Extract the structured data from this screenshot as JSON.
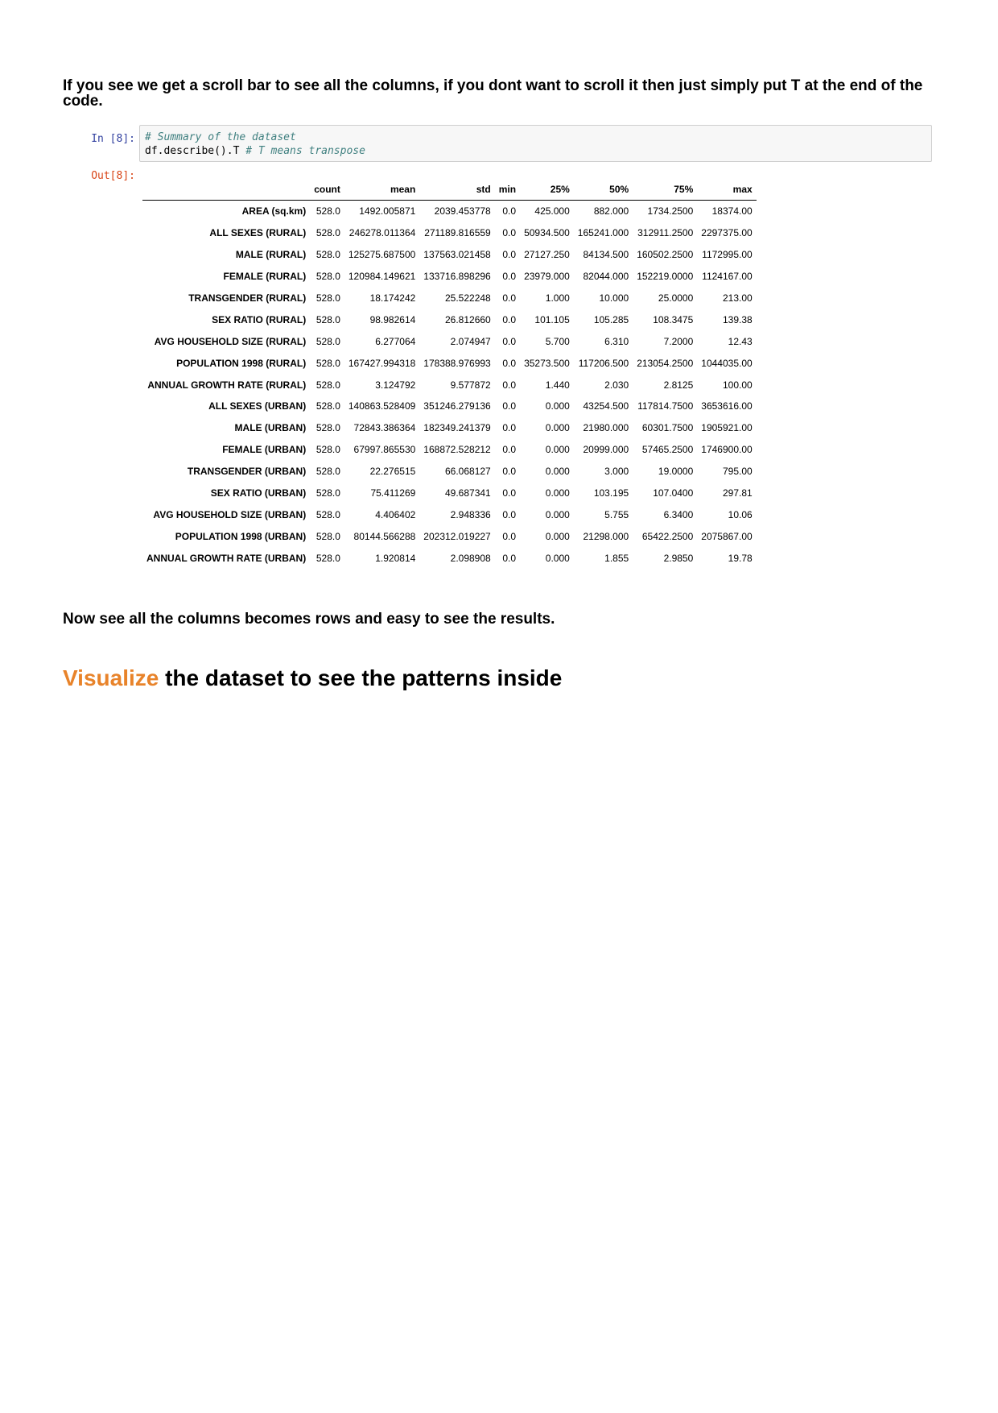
{
  "intro_text": "If you see we get a scroll bar to see all the columns, if you dont want to scroll it then just simply put T at the end of the code.",
  "cell": {
    "in_prompt": "In [8]:",
    "out_prompt": "Out[8]:",
    "code_comment": "# Summary of the dataset",
    "code_line": "df.describe().T",
    "code_inline_comment": "# T means transpose"
  },
  "table": {
    "columns": [
      "",
      "count",
      "mean",
      "std",
      "min",
      "25%",
      "50%",
      "75%",
      "max"
    ],
    "rows": [
      [
        "AREA (sq.km)",
        "528.0",
        "1492.005871",
        "2039.453778",
        "0.0",
        "425.000",
        "882.000",
        "1734.2500",
        "18374.00"
      ],
      [
        "ALL SEXES (RURAL)",
        "528.0",
        "246278.011364",
        "271189.816559",
        "0.0",
        "50934.500",
        "165241.000",
        "312911.2500",
        "2297375.00"
      ],
      [
        "MALE (RURAL)",
        "528.0",
        "125275.687500",
        "137563.021458",
        "0.0",
        "27127.250",
        "84134.500",
        "160502.2500",
        "1172995.00"
      ],
      [
        "FEMALE (RURAL)",
        "528.0",
        "120984.149621",
        "133716.898296",
        "0.0",
        "23979.000",
        "82044.000",
        "152219.0000",
        "1124167.00"
      ],
      [
        "TRANSGENDER (RURAL)",
        "528.0",
        "18.174242",
        "25.522248",
        "0.0",
        "1.000",
        "10.000",
        "25.0000",
        "213.00"
      ],
      [
        "SEX RATIO (RURAL)",
        "528.0",
        "98.982614",
        "26.812660",
        "0.0",
        "101.105",
        "105.285",
        "108.3475",
        "139.38"
      ],
      [
        "AVG HOUSEHOLD SIZE (RURAL)",
        "528.0",
        "6.277064",
        "2.074947",
        "0.0",
        "5.700",
        "6.310",
        "7.2000",
        "12.43"
      ],
      [
        "POPULATION 1998 (RURAL)",
        "528.0",
        "167427.994318",
        "178388.976993",
        "0.0",
        "35273.500",
        "117206.500",
        "213054.2500",
        "1044035.00"
      ],
      [
        "ANNUAL GROWTH RATE (RURAL)",
        "528.0",
        "3.124792",
        "9.577872",
        "0.0",
        "1.440",
        "2.030",
        "2.8125",
        "100.00"
      ],
      [
        "ALL SEXES (URBAN)",
        "528.0",
        "140863.528409",
        "351246.279136",
        "0.0",
        "0.000",
        "43254.500",
        "117814.7500",
        "3653616.00"
      ],
      [
        "MALE (URBAN)",
        "528.0",
        "72843.386364",
        "182349.241379",
        "0.0",
        "0.000",
        "21980.000",
        "60301.7500",
        "1905921.00"
      ],
      [
        "FEMALE (URBAN)",
        "528.0",
        "67997.865530",
        "168872.528212",
        "0.0",
        "0.000",
        "20999.000",
        "57465.2500",
        "1746900.00"
      ],
      [
        "TRANSGENDER (URBAN)",
        "528.0",
        "22.276515",
        "66.068127",
        "0.0",
        "0.000",
        "3.000",
        "19.0000",
        "795.00"
      ],
      [
        "SEX RATIO (URBAN)",
        "528.0",
        "75.411269",
        "49.687341",
        "0.0",
        "0.000",
        "103.195",
        "107.0400",
        "297.81"
      ],
      [
        "AVG HOUSEHOLD SIZE (URBAN)",
        "528.0",
        "4.406402",
        "2.948336",
        "0.0",
        "0.000",
        "5.755",
        "6.3400",
        "10.06"
      ],
      [
        "POPULATION 1998 (URBAN)",
        "528.0",
        "80144.566288",
        "202312.019227",
        "0.0",
        "0.000",
        "21298.000",
        "65422.2500",
        "2075867.00"
      ],
      [
        "ANNUAL GROWTH RATE (URBAN)",
        "528.0",
        "1.920814",
        "2.098908",
        "0.0",
        "0.000",
        "1.855",
        "2.9850",
        "19.78"
      ]
    ]
  },
  "section1_text": "Now see all the columns becomes rows and easy to see the results.",
  "section2": {
    "accent_word": "Visualize",
    "rest": " the dataset to see the patterns inside",
    "accent_color": "#e8832a"
  }
}
